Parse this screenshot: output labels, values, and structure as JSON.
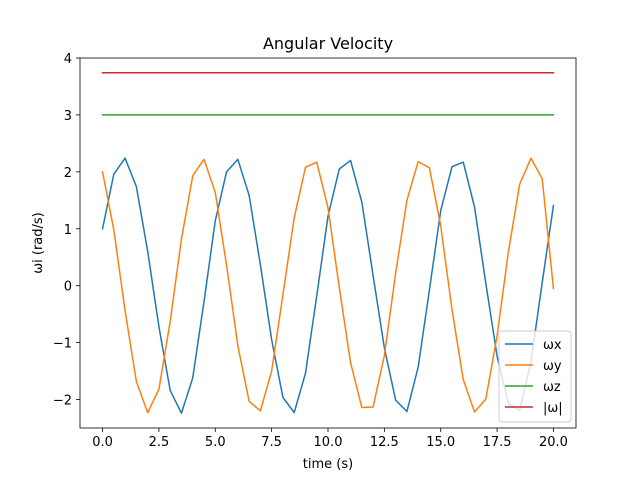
{
  "chart_data": {
    "type": "line",
    "title": "Angular Velocity",
    "xlabel": "time (s)",
    "ylabel": "ωi (rad/s)",
    "xlim": [
      -1.0,
      21.0
    ],
    "ylim": [
      -2.5,
      4.0
    ],
    "xticks": [
      0.0,
      2.5,
      5.0,
      7.5,
      10.0,
      12.5,
      15.0,
      17.5,
      20.0
    ],
    "xtick_labels": [
      "0.0",
      "2.5",
      "5.0",
      "7.5",
      "10.0",
      "12.5",
      "15.0",
      "17.5",
      "20.0"
    ],
    "yticks": [
      -2,
      -1,
      0,
      1,
      2,
      3,
      4
    ],
    "ytick_labels": [
      "−2",
      "−1",
      "0",
      "1",
      "2",
      "3",
      "4"
    ],
    "grid": false,
    "legend_position": "lower-right",
    "series": [
      {
        "name": "ωx",
        "color": "#1f77b4",
        "x": [
          0.0,
          0.5,
          1.0,
          1.5,
          2.0,
          2.5,
          3.0,
          3.5,
          4.0,
          4.5,
          5.0,
          5.5,
          6.0,
          6.5,
          7.0,
          7.5,
          8.0,
          8.5,
          9.0,
          9.5,
          10.0,
          10.5,
          11.0,
          11.5,
          12.0,
          12.5,
          13.0,
          13.5,
          14.0,
          14.5,
          15.0,
          15.5,
          16.0,
          16.5,
          17.0,
          17.5,
          18.0,
          18.5,
          19.0,
          19.5,
          20.0
        ],
        "y": [
          1.0,
          1.96,
          2.24,
          1.74,
          0.61,
          -0.72,
          -1.84,
          -2.24,
          -1.62,
          -0.28,
          1.14,
          2.0,
          2.22,
          1.59,
          0.37,
          -0.95,
          -1.96,
          -2.23,
          -1.54,
          -0.18,
          1.22,
          2.05,
          2.2,
          1.47,
          0.18,
          -1.09,
          -2.01,
          -2.21,
          -1.43,
          -0.07,
          1.32,
          2.09,
          2.17,
          1.38,
          0.04,
          -1.24,
          -2.07,
          -2.19,
          -1.34,
          0.05,
          1.41
        ]
      },
      {
        "name": "ωy",
        "color": "#ff7f0e",
        "x": [
          0.0,
          0.5,
          1.0,
          1.5,
          2.0,
          2.5,
          3.0,
          3.5,
          4.0,
          4.5,
          5.0,
          5.5,
          6.0,
          6.5,
          7.0,
          7.5,
          8.0,
          8.5,
          9.0,
          9.5,
          10.0,
          10.5,
          11.0,
          11.5,
          12.0,
          12.5,
          13.0,
          13.5,
          14.0,
          14.5,
          15.0,
          15.5,
          16.0,
          16.5,
          17.0,
          17.5,
          18.0,
          18.5,
          19.0,
          19.5,
          20.0
        ],
        "y": [
          2.0,
          0.98,
          -0.44,
          -1.68,
          -2.23,
          -1.82,
          -0.63,
          0.82,
          1.93,
          2.22,
          1.64,
          0.36,
          -1.05,
          -2.03,
          -2.2,
          -1.5,
          -0.16,
          1.19,
          2.08,
          2.17,
          1.37,
          -0.03,
          -1.35,
          -2.14,
          -2.13,
          -1.23,
          0.22,
          1.5,
          2.18,
          2.07,
          1.05,
          -0.42,
          -1.65,
          -2.22,
          -1.99,
          -0.88,
          0.59,
          1.78,
          2.24,
          1.88,
          -0.05
        ]
      },
      {
        "name": "ωz",
        "color": "#2ca02c",
        "x": [
          0.0,
          20.0
        ],
        "y": [
          3.0,
          3.0
        ]
      },
      {
        "name": "|ω|",
        "color": "#d62728",
        "x": [
          0.0,
          20.0
        ],
        "y": [
          3.74,
          3.74
        ]
      }
    ]
  }
}
